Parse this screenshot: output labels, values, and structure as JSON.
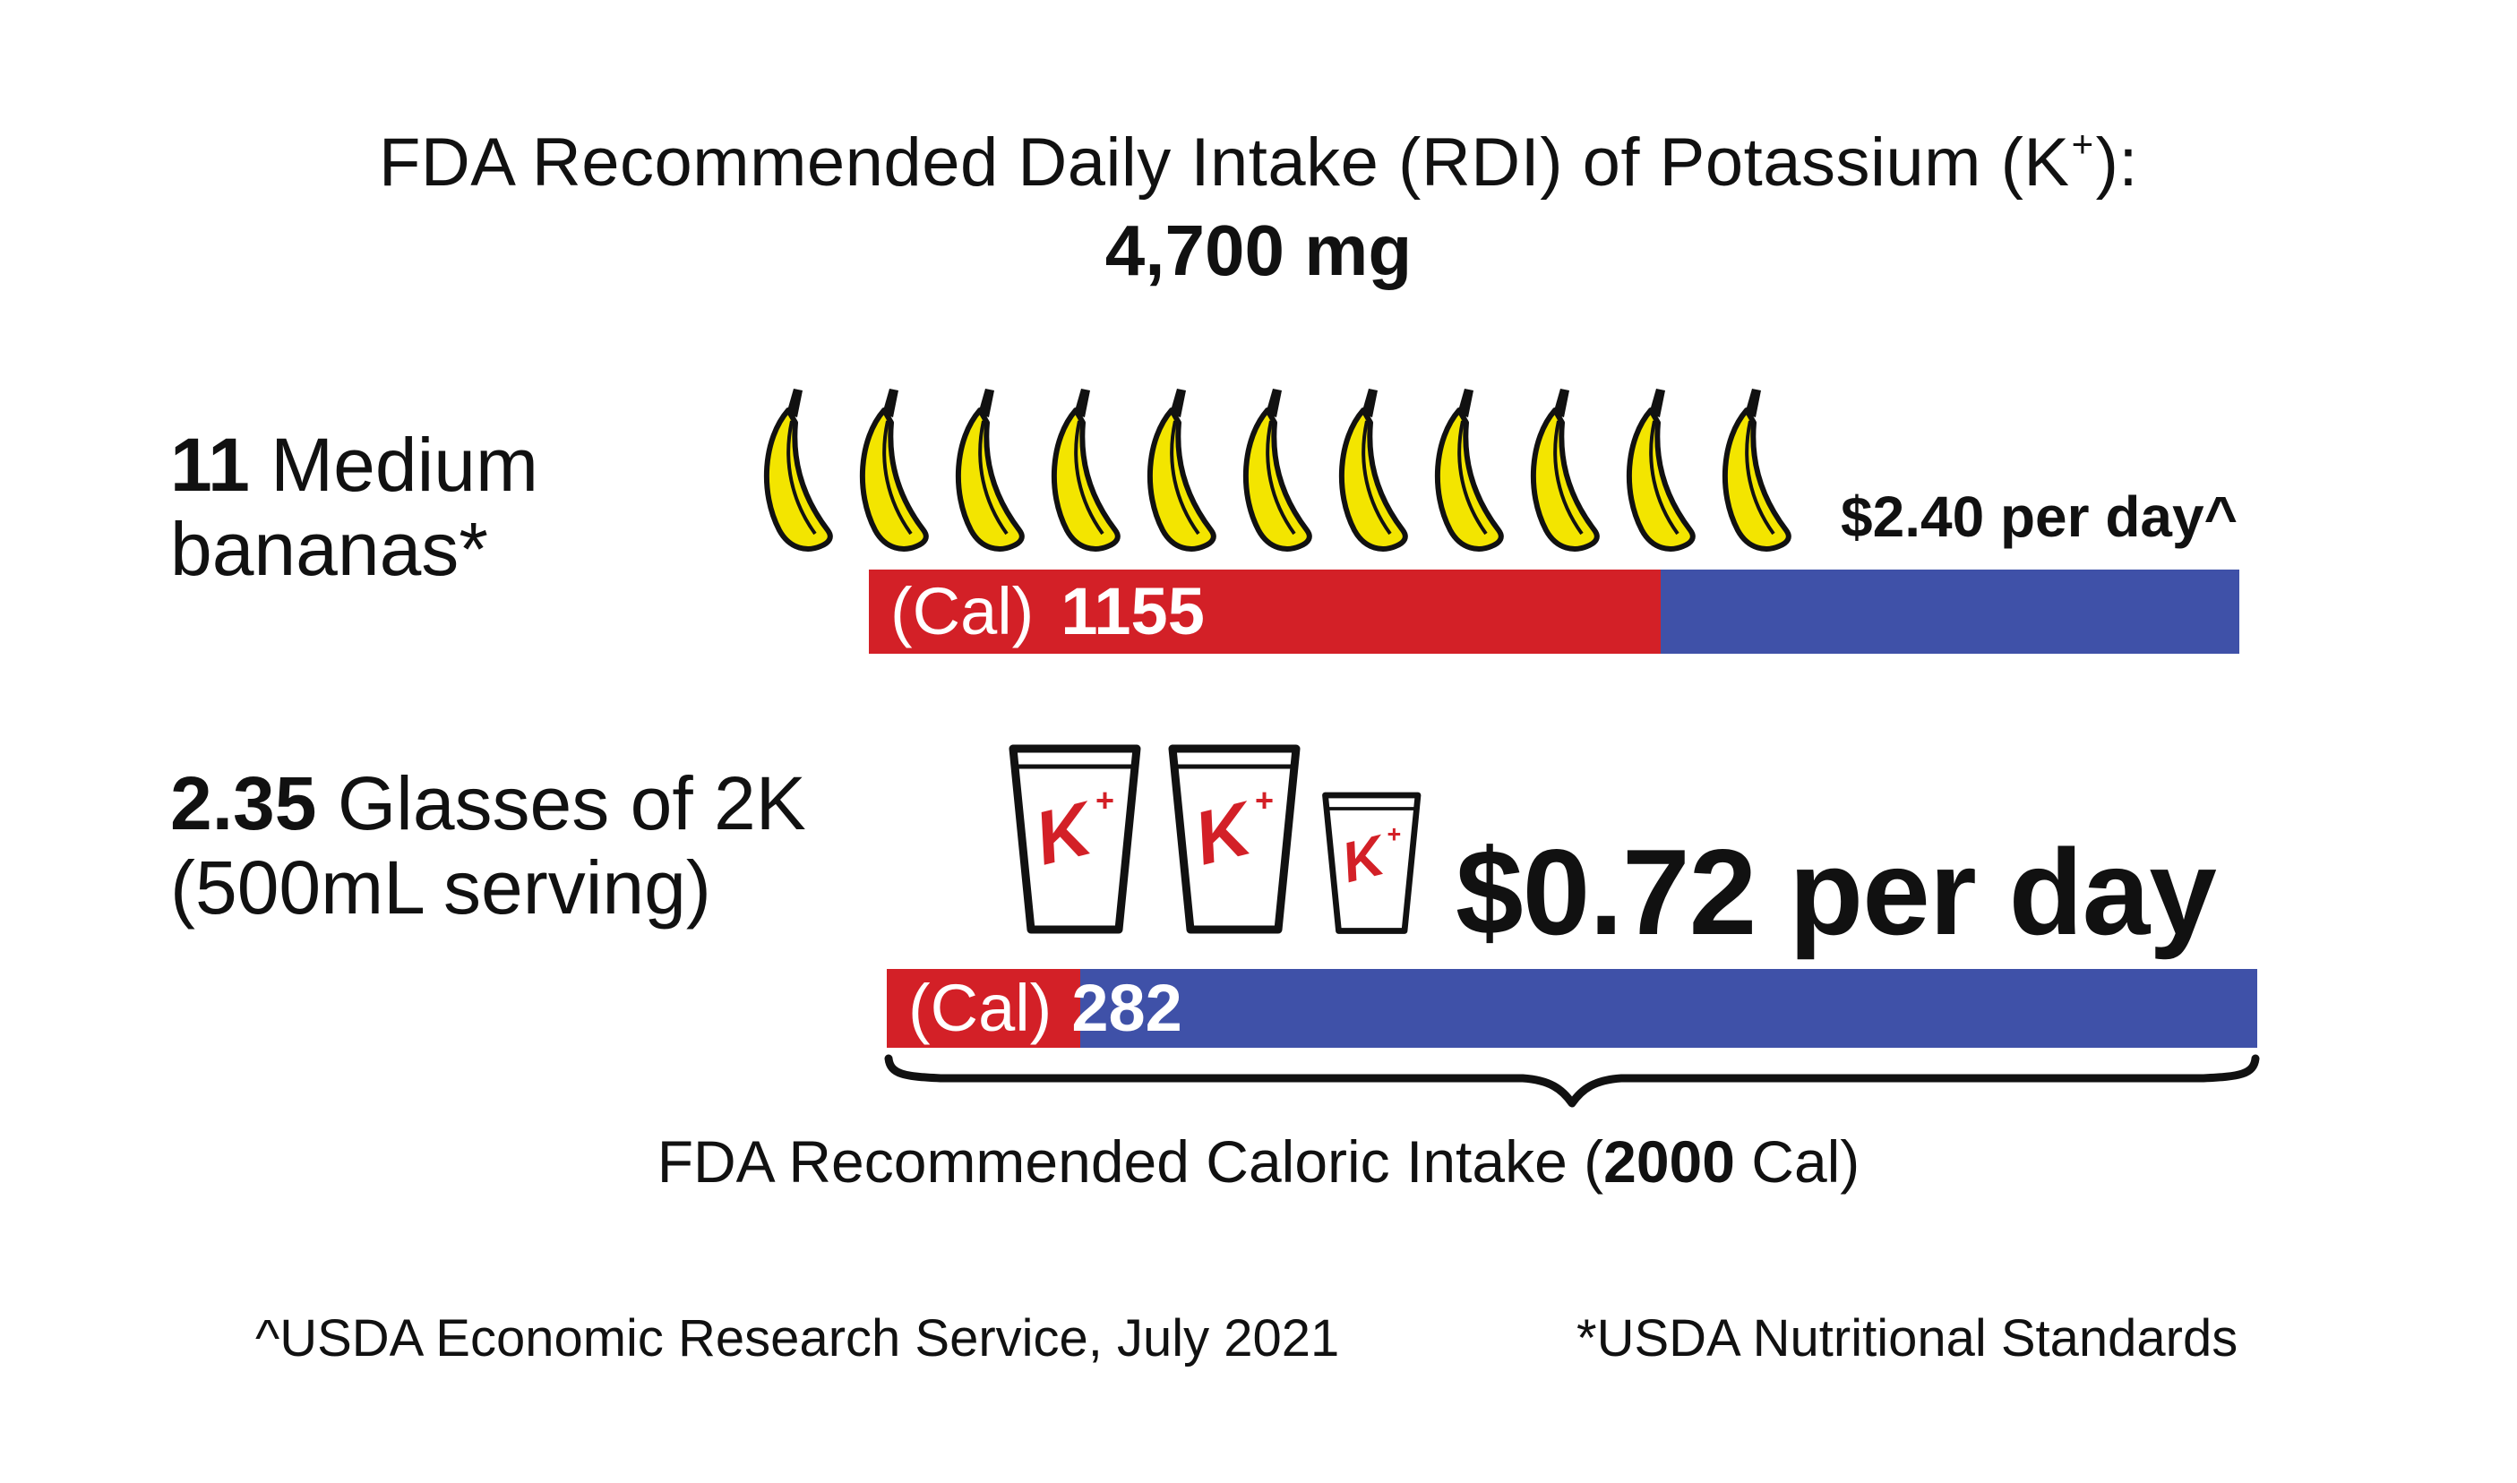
{
  "title": {
    "text_before": "FDA Recommended Daily Intake (RDI) of Potassium (K",
    "superscript": "+",
    "text_after": "):",
    "amount": "4,700 mg"
  },
  "chart_data": {
    "type": "bar",
    "title": "FDA Recommended Daily Intake (RDI) of Potassium (K+): 4,700 mg",
    "total_label_before": "FDA Recommended Caloric Intake (",
    "total_value": 2000,
    "total_value_label": "2000",
    "total_label_after": " Cal)",
    "series": [
      {
        "label_value": "11",
        "label_text_1": "Medium",
        "label_text_2": "bananas*",
        "icon": "banana-icon",
        "icon_count": 11,
        "unit": "(Cal)",
        "value": 1155,
        "value_label": "1155",
        "price": "$2.40 per day^",
        "fill_color": "#d32027",
        "rest_color": "#3f51a8"
      },
      {
        "label_value": "2.35",
        "label_text_1": "Glasses of 2K",
        "label_text_2": "(500mL serving)",
        "icon": "glass-icon",
        "icon_count": 2.35,
        "icon_badge": "K",
        "icon_badge_sup": "+",
        "unit": "(Cal)",
        "value": 282,
        "value_label": "282",
        "price": "$0.72 per day",
        "fill_color": "#d32027",
        "rest_color": "#3f51a8"
      }
    ]
  },
  "footnotes": {
    "left": "^USDA Economic Research Service, July 2021",
    "right": "*USDA Nutritional Standards"
  }
}
